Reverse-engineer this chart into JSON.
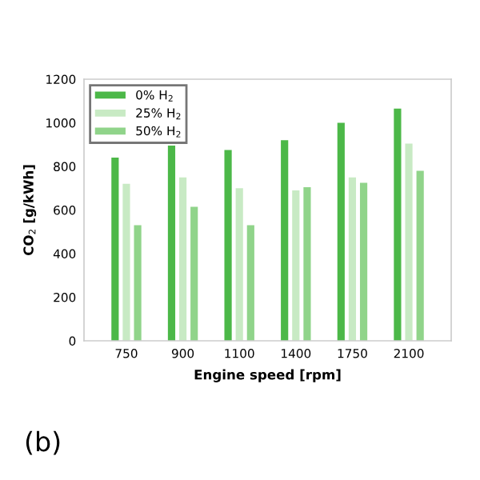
{
  "chart_data": {
    "type": "bar",
    "xlabel": "Engine speed [rpm]",
    "ylabel": "CO$_{2}$ [g/kWh]",
    "categories": [
      "750",
      "900",
      "1100",
      "1400",
      "1750",
      "2100"
    ],
    "series": [
      {
        "name": "0% H$_{2}$",
        "color": "#4cb848",
        "values": [
          840,
          895,
          875,
          920,
          1000,
          1065
        ]
      },
      {
        "name": "25% H$_{2}$",
        "color": "#c8eac4",
        "values": [
          720,
          750,
          700,
          690,
          750,
          905
        ]
      },
      {
        "name": "50% H$_{2}$",
        "color": "#90d48a",
        "values": [
          530,
          615,
          530,
          705,
          725,
          780
        ]
      }
    ],
    "ylim": [
      0,
      1200
    ],
    "yticks": [
      0,
      200,
      400,
      600,
      800,
      1000,
      1200
    ],
    "grid": false,
    "legend": "top left",
    "annotations": [
      "(b)"
    ]
  }
}
